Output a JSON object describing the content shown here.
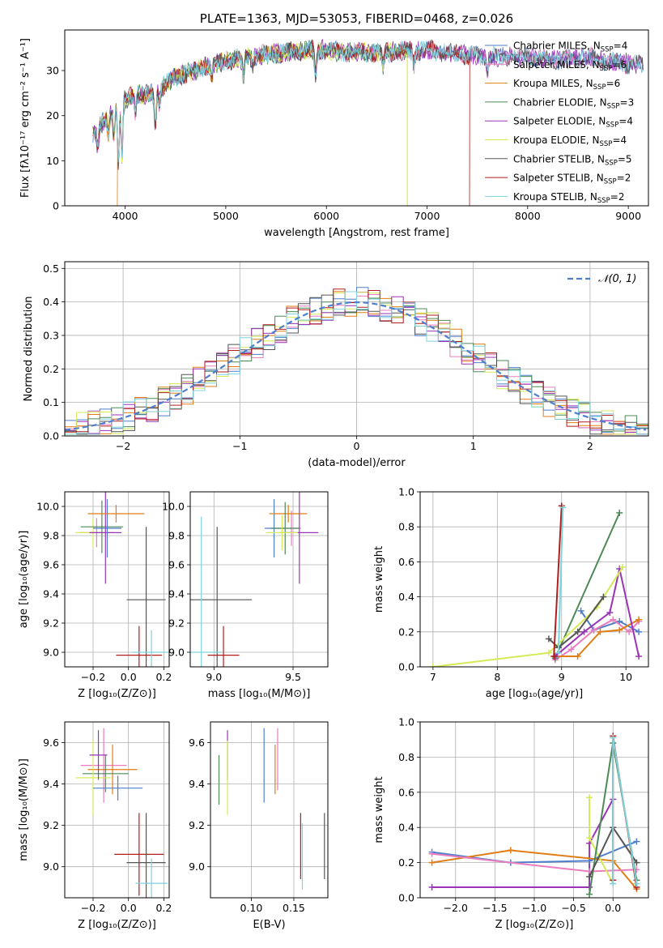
{
  "colors": {
    "Chabrier MILES": "#4f7fcc",
    "Salpeter MILES": "#e97dc0",
    "Kroupa MILES": "#e07d15",
    "Chabrier ELODIE": "#4d8a55",
    "Salpeter ELODIE": "#9a34b7",
    "Kroupa ELODIE": "#d5ea55",
    "Chabrier STELIB": "#555555",
    "Salpeter STELIB": "#b11e1e",
    "Kroupa STELIB": "#7fd3dd"
  },
  "chart_data": [
    {
      "id": "spectrum",
      "type": "line",
      "title": "PLATE=1363, MJD=53053, FIBERID=0468, z=0.026",
      "xlabel": "wavelength [Angstrom, rest frame]",
      "ylabel": "Flux [fλ10⁻¹⁷ erg cm⁻² s⁻¹ A⁻¹]",
      "xlim": [
        3400,
        9200
      ],
      "ylim": [
        0,
        39
      ],
      "xticks": [
        4000,
        5000,
        6000,
        7000,
        8000,
        9000
      ],
      "yticks": [
        0,
        10,
        20,
        30
      ],
      "grid": false,
      "legend_position": "upper-right",
      "legend": [
        {
          "series": "Chabrier MILES",
          "label": "Chabrier MILES, N",
          "sub": "SSP",
          "n": "=4"
        },
        {
          "series": "Salpeter MILES",
          "label": "Salpeter MILES, N",
          "sub": "SSP",
          "n": "=6"
        },
        {
          "series": "Kroupa MILES",
          "label": "Kroupa MILES, N",
          "sub": "SSP",
          "n": "=6"
        },
        {
          "series": "Chabrier ELODIE",
          "label": "Chabrier ELODIE, N",
          "sub": "SSP",
          "n": "=3"
        },
        {
          "series": "Salpeter ELODIE",
          "label": "Salpeter ELODIE, N",
          "sub": "SSP",
          "n": "=4"
        },
        {
          "series": "Kroupa ELODIE",
          "label": "Kroupa ELODIE, N",
          "sub": "SSP",
          "n": "=4"
        },
        {
          "series": "Chabrier STELIB",
          "label": "Chabrier STELIB, N",
          "sub": "SSP",
          "n": "=5"
        },
        {
          "series": "Salpeter STELIB",
          "label": "Salpeter STELIB, N",
          "sub": "SSP",
          "n": "=2"
        },
        {
          "series": "Kroupa STELIB",
          "label": "Kroupa STELIB, N",
          "sub": "SSP",
          "n": "=2"
        }
      ],
      "continuum": {
        "x": [
          3680,
          3800,
          3900,
          4000,
          4100,
          4200,
          4300,
          4400,
          4500,
          4600,
          4700,
          4800,
          4900,
          5000,
          5200,
          5400,
          5600,
          5800,
          6000,
          6200,
          6400,
          6600,
          6800,
          7000,
          7200,
          7400,
          7600,
          7800,
          8000,
          8200,
          8400,
          8600,
          8800,
          9000,
          9200
        ],
        "y": [
          16,
          19,
          22,
          23.5,
          25,
          24.5,
          25,
          27,
          28.5,
          29.5,
          30,
          31,
          31.5,
          32,
          33,
          33.5,
          34,
          34.5,
          34.5,
          34,
          34,
          34,
          34.5,
          34.5,
          34,
          33.5,
          33,
          33,
          33,
          32.5,
          32.5,
          33,
          32,
          31.5,
          31
        ]
      },
      "absorption_lines": [
        {
          "x": 3727,
          "depth": 4
        },
        {
          "x": 3835,
          "depth": 4
        },
        {
          "x": 3889,
          "depth": 6
        },
        {
          "x": 3933,
          "depth": 13
        },
        {
          "x": 3968,
          "depth": 12
        },
        {
          "x": 4102,
          "depth": 4
        },
        {
          "x": 4300,
          "depth": 7
        },
        {
          "x": 4340,
          "depth": 3
        },
        {
          "x": 4861,
          "depth": 3
        },
        {
          "x": 5175,
          "depth": 4
        },
        {
          "x": 5270,
          "depth": 2
        },
        {
          "x": 5893,
          "depth": 6
        },
        {
          "x": 6563,
          "depth": 3
        },
        {
          "x": 6870,
          "depth": 3
        },
        {
          "x": 7600,
          "depth": 3
        }
      ],
      "drops": [
        {
          "series": "Kroupa MILES",
          "x": 3920
        },
        {
          "series": "Chabrier ELODIE",
          "x": 6800
        },
        {
          "series": "Kroupa ELODIE",
          "x": 6800
        },
        {
          "series": "Salpeter STELIB",
          "x": 7420
        }
      ]
    },
    {
      "id": "residuals",
      "type": "step",
      "title": "",
      "xlabel": "(data-model)/error",
      "ylabel": "Normed distribution",
      "xlim": [
        -2.5,
        2.5
      ],
      "ylim": [
        0,
        0.52
      ],
      "xticks": [
        -2,
        -1,
        0,
        1,
        2
      ],
      "xticklabels": [
        "−2",
        "−1",
        "0",
        "1",
        "2"
      ],
      "yticks": [
        0,
        0.1,
        0.2,
        0.3,
        0.4,
        0.5
      ],
      "yticklabels": [
        "0.0",
        "0.1",
        "0.2",
        "0.3",
        "0.4",
        "0.5"
      ],
      "grid": true,
      "bin_width": 0.1,
      "reference": {
        "name": "N(0,1)",
        "label": "𝒩(0, 1)",
        "color": "#4f7fcc",
        "style": "dashed"
      },
      "legend_position": "upper-right"
    },
    {
      "id": "z-age",
      "type": "errorbar",
      "xlabel": "Z [log₁₀(Z/Z⊙)]",
      "ylabel": "age  [log₁₀(age/yr)]",
      "xlim": [
        -0.36,
        0.23
      ],
      "ylim": [
        8.9,
        10.1
      ],
      "xticks": [
        -0.2,
        0.0,
        0.2
      ],
      "xticklabels": [
        "−0.2",
        "0.0",
        "0.2"
      ],
      "yticks": [
        9.0,
        9.2,
        9.4,
        9.6,
        9.8,
        10.0
      ],
      "yticklabels": [
        "9.0",
        "9.2",
        "9.4",
        "9.6",
        "9.8",
        "10.0"
      ],
      "grid": true,
      "points": [
        {
          "series": "Salpeter MILES",
          "x": -0.18,
          "xerr": 0.1,
          "y": 9.82,
          "yerr": 0.1
        },
        {
          "series": "Kroupa ELODIE",
          "x": -0.2,
          "xerr": 0.1,
          "y": 9.82,
          "yerr": 0.1
        },
        {
          "series": "Chabrier ELODIE",
          "x": -0.15,
          "xerr": 0.12,
          "y": 9.86,
          "yerr": 0.18
        },
        {
          "series": "Salpeter ELODIE",
          "x": -0.13,
          "xerr": 0.09,
          "y": 9.82,
          "yerr": 0.35
        },
        {
          "series": "Chabrier MILES",
          "x": -0.12,
          "xerr": 0.08,
          "y": 9.85,
          "yerr": 0.2
        },
        {
          "series": "Kroupa MILES",
          "x": -0.07,
          "xerr": 0.16,
          "y": 9.95,
          "yerr": 0.06
        },
        {
          "series": "Chabrier STELIB",
          "x": 0.1,
          "xerr": 0.11,
          "y": 9.36,
          "yerr": 0.5
        },
        {
          "series": "Salpeter STELIB",
          "x": 0.06,
          "xerr": 0.13,
          "y": 8.98,
          "yerr": 0.2
        },
        {
          "series": "Kroupa STELIB",
          "x": 0.13,
          "xerr": 0.11,
          "y": 9.0,
          "yerr": 0.15
        }
      ]
    },
    {
      "id": "mass-age",
      "type": "errorbar",
      "xlabel": "mass [log₁₀(M/M⊙)]",
      "ylabel": "",
      "xlim": [
        8.85,
        9.72
      ],
      "ylim": [
        8.9,
        10.1
      ],
      "xticks": [
        9.0,
        9.5
      ],
      "xticklabels": [
        "9.0",
        "9.5"
      ],
      "yticks": [
        9.0,
        9.2,
        9.4,
        9.6,
        9.8,
        10.0
      ],
      "yticklabels": [
        "9.0",
        "9.2",
        "9.4",
        "9.6",
        "9.8",
        "10.0"
      ],
      "grid": true,
      "points": [
        {
          "series": "Chabrier MILES",
          "x": 9.38,
          "xerr": 0.06,
          "y": 9.85,
          "yerr": 0.2
        },
        {
          "series": "Salpeter MILES",
          "x": 9.49,
          "xerr": 0.06,
          "y": 9.85,
          "yerr": 0.12
        },
        {
          "series": "Kroupa MILES",
          "x": 9.47,
          "xerr": 0.12,
          "y": 9.95,
          "yerr": 0.06
        },
        {
          "series": "Chabrier ELODIE",
          "x": 9.45,
          "xerr": 0.09,
          "y": 9.85,
          "yerr": 0.18
        },
        {
          "series": "Salpeter ELODIE",
          "x": 9.54,
          "xerr": 0.12,
          "y": 9.82,
          "yerr": 0.35
        },
        {
          "series": "Kroupa ELODIE",
          "x": 9.43,
          "xerr": 0.1,
          "y": 9.82,
          "yerr": 0.12
        },
        {
          "series": "Chabrier STELIB",
          "x": 9.02,
          "xerr": 0.22,
          "y": 9.36,
          "yerr": 0.5
        },
        {
          "series": "Salpeter STELIB",
          "x": 9.06,
          "xerr": 0.1,
          "y": 8.98,
          "yerr": 0.2
        },
        {
          "series": "Kroupa STELIB",
          "x": 8.92,
          "xerr": 0.13,
          "y": 9.0,
          "yerr": 0.93
        }
      ]
    },
    {
      "id": "age-weight",
      "type": "line",
      "xlabel": "age  [log₁₀(age/yr)]",
      "ylabel": "mass weight",
      "xlim": [
        6.8,
        10.35
      ],
      "ylim": [
        0,
        1
      ],
      "xticks": [
        7,
        8,
        9,
        10
      ],
      "yticks": [
        0,
        0.2,
        0.4,
        0.6,
        0.8,
        1.0
      ],
      "yticklabels": [
        "0.0",
        "0.2",
        "0.4",
        "0.6",
        "0.8",
        "1.0"
      ],
      "grid": true,
      "series": [
        {
          "name": "Chabrier MILES",
          "x": [
            9.3,
            9.5,
            9.9,
            10.2
          ],
          "y": [
            0.32,
            0.21,
            0.26,
            0.2
          ]
        },
        {
          "name": "Salpeter MILES",
          "x": [
            8.9,
            9.15,
            9.5,
            9.8,
            10.05,
            10.2
          ],
          "y": [
            0.04,
            0.1,
            0.21,
            0.27,
            0.2,
            0.26
          ]
        },
        {
          "name": "Kroupa MILES",
          "x": [
            8.9,
            9.25,
            9.6,
            9.9,
            10.2
          ],
          "y": [
            0.06,
            0.06,
            0.2,
            0.21,
            0.27
          ]
        },
        {
          "name": "Chabrier ELODIE",
          "x": [
            8.9,
            9.9
          ],
          "y": [
            0.05,
            0.88
          ]
        },
        {
          "name": "Salpeter ELODIE",
          "x": [
            8.9,
            9.35,
            9.75,
            9.9,
            10.2
          ],
          "y": [
            0.06,
            0.2,
            0.31,
            0.56,
            0.06
          ]
        },
        {
          "name": "Kroupa ELODIE",
          "x": [
            7.0,
            8.8,
            9.55,
            9.95
          ],
          "y": [
            0.0,
            0.08,
            0.34,
            0.57
          ]
        },
        {
          "name": "Chabrier STELIB",
          "x": [
            8.8,
            8.95,
            9.25,
            9.65
          ],
          "y": [
            0.16,
            0.11,
            0.2,
            0.4
          ]
        },
        {
          "name": "Salpeter STELIB",
          "x": [
            8.88,
            9.0
          ],
          "y": [
            0.06,
            0.92
          ]
        },
        {
          "name": "Kroupa STELIB",
          "x": [
            8.95,
            9.02
          ],
          "y": [
            0.08,
            0.91
          ]
        }
      ]
    },
    {
      "id": "z-mass",
      "type": "errorbar",
      "xlabel": "Z [log₁₀(Z/Z⊙)]",
      "ylabel": "mass [log₁₀(M/M⊙)]",
      "xlim": [
        -0.36,
        0.23
      ],
      "ylim": [
        8.85,
        9.7
      ],
      "xticks": [
        -0.2,
        0.0,
        0.2
      ],
      "xticklabels": [
        "−0.2",
        "0.0",
        "0.2"
      ],
      "yticks": [
        9.0,
        9.2,
        9.4,
        9.6
      ],
      "yticklabels": [
        "9.0",
        "9.2",
        "9.4",
        "9.6"
      ],
      "grid": true,
      "points": [
        {
          "series": "Salpeter MILES",
          "x": -0.14,
          "xerr": 0.13,
          "y": 9.49,
          "yerr": 0.18
        },
        {
          "series": "Kroupa MILES",
          "x": -0.09,
          "xerr": 0.14,
          "y": 9.47,
          "yerr": 0.12
        },
        {
          "series": "Chabrier ELODIE",
          "x": -0.13,
          "xerr": 0.13,
          "y": 9.45,
          "yerr": 0.09
        },
        {
          "series": "Kroupa ELODIE",
          "x": -0.2,
          "xerr": 0.1,
          "y": 9.43,
          "yerr": 0.18
        },
        {
          "series": "Salpeter ELODIE",
          "x": -0.17,
          "xerr": 0.05,
          "y": 9.54,
          "yerr": 0.12
        },
        {
          "series": "Chabrier MILES",
          "x": -0.06,
          "xerr": 0.14,
          "y": 9.38,
          "yerr": 0.06
        },
        {
          "series": "Salpeter STELIB",
          "x": 0.06,
          "xerr": 0.14,
          "y": 9.06,
          "yerr": 0.2
        },
        {
          "series": "Chabrier STELIB",
          "x": 0.1,
          "xerr": 0.11,
          "y": 9.02,
          "yerr": 0.24
        },
        {
          "series": "Kroupa STELIB",
          "x": 0.13,
          "xerr": 0.09,
          "y": 8.92,
          "yerr": 0.12
        }
      ]
    },
    {
      "id": "ebv-mass",
      "type": "errorbar",
      "xlabel": "E(B-V)",
      "ylabel": "",
      "xlim": [
        0.052,
        0.19
      ],
      "ylim": [
        8.85,
        9.7
      ],
      "xticks": [
        0.1,
        0.15
      ],
      "xticklabels": [
        "0.10",
        "0.15"
      ],
      "yticks": [
        9.0,
        9.2,
        9.4,
        9.6
      ],
      "yticklabels": [
        "9.0",
        "9.2",
        "9.4",
        "9.6"
      ],
      "grid": true,
      "points": [
        {
          "series": "Chabrier ELODIE",
          "x": 0.062,
          "y": 9.42,
          "yerr": 0.12
        },
        {
          "series": "Salpeter ELODIE",
          "x": 0.072,
          "y": 9.54,
          "yerr": 0.12
        },
        {
          "series": "Kroupa ELODIE",
          "x": 0.072,
          "y": 9.43,
          "yerr": 0.18
        },
        {
          "series": "Chabrier MILES",
          "x": 0.115,
          "y": 9.49,
          "yerr": 0.18
        },
        {
          "series": "Kroupa MILES",
          "x": 0.128,
          "y": 9.47,
          "yerr": 0.12
        },
        {
          "series": "Salpeter MILES",
          "x": 0.131,
          "y": 9.52,
          "yerr": 0.15
        },
        {
          "series": "Salpeter STELIB",
          "x": 0.158,
          "y": 9.1,
          "yerr": 0.16
        },
        {
          "series": "Kroupa STELIB",
          "x": 0.16,
          "y": 9.05,
          "yerr": 0.16
        },
        {
          "series": "Chabrier STELIB",
          "x": 0.186,
          "y": 9.1,
          "yerr": 0.16
        }
      ]
    },
    {
      "id": "z-weight",
      "type": "line",
      "xlabel": "Z [log₁₀(Z/Z⊙)]",
      "ylabel": "mass weight",
      "xlim": [
        -2.45,
        0.45
      ],
      "ylim": [
        0,
        1
      ],
      "xticks": [
        -2.0,
        -1.5,
        -1.0,
        -0.5,
        0.0
      ],
      "xticklabels": [
        "−2.0",
        "−1.5",
        "−1.0",
        "−0.5",
        "0.0"
      ],
      "yticks": [
        0,
        0.2,
        0.4,
        0.6,
        0.8,
        1.0
      ],
      "yticklabels": [
        "0.0",
        "0.2",
        "0.4",
        "0.6",
        "0.8",
        "1.0"
      ],
      "grid": true,
      "series": [
        {
          "name": "Salpeter ELODIE",
          "x": [
            -2.3,
            -0.3,
            -0.3,
            0.0
          ],
          "y": [
            0.06,
            0.06,
            0.31,
            0.56
          ]
        },
        {
          "name": "Chabrier MILES",
          "x": [
            -2.3,
            -1.3,
            -0.3,
            0.3
          ],
          "y": [
            0.26,
            0.2,
            0.21,
            0.32
          ]
        },
        {
          "name": "Kroupa MILES",
          "x": [
            -2.3,
            -1.3,
            0.0,
            0.3
          ],
          "y": [
            0.2,
            0.27,
            0.21,
            0.05
          ]
        },
        {
          "name": "Salpeter MILES",
          "x": [
            -2.3,
            -0.3,
            0.3
          ],
          "y": [
            0.25,
            0.15,
            0.16
          ]
        },
        {
          "name": "Kroupa ELODIE",
          "x": [
            -0.3,
            -0.3,
            0.0
          ],
          "y": [
            0.57,
            0.34,
            0.08
          ]
        },
        {
          "name": "Chabrier ELODIE",
          "x": [
            -0.3,
            0.0,
            0.3
          ],
          "y": [
            0.02,
            0.88,
            0.1
          ]
        },
        {
          "name": "Chabrier STELIB",
          "x": [
            -0.3,
            0.0,
            0.3
          ],
          "y": [
            0.12,
            0.4,
            0.2
          ]
        },
        {
          "name": "Salpeter STELIB",
          "x": [
            0.0,
            0.0,
            0.3
          ],
          "y": [
            0.1,
            0.92,
            0.06
          ]
        },
        {
          "name": "Kroupa STELIB",
          "x": [
            0.0,
            0.0,
            0.3
          ],
          "y": [
            0.08,
            0.91,
            0.08
          ]
        }
      ]
    }
  ]
}
